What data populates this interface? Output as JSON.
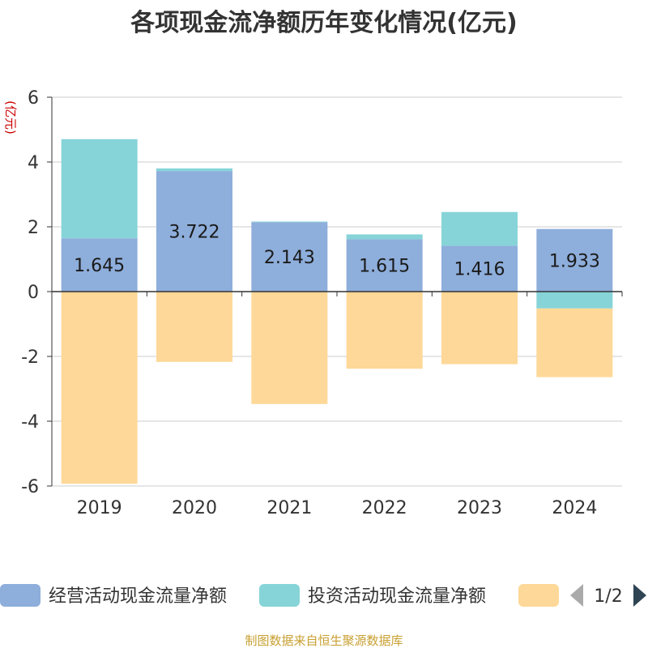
{
  "chart_data": {
    "type": "bar",
    "stacked": true,
    "title": "各项现金流净额历年变化情况(亿元)",
    "ylabel": "(亿元)",
    "xlabel": "",
    "categories": [
      "2019",
      "2020",
      "2021",
      "2022",
      "2023",
      "2024"
    ],
    "ylim": [
      -6,
      6
    ],
    "yticks": [
      6,
      4,
      2,
      0,
      -2,
      -4,
      -6
    ],
    "grid": true,
    "legend_position": "bottom",
    "series": [
      {
        "name": "经营活动现金流量净额",
        "color": "#8eaedb",
        "values": [
          1.645,
          3.722,
          2.143,
          1.615,
          1.416,
          1.933
        ],
        "labels": [
          "1.645",
          "3.722",
          "2.143",
          "1.615",
          "1.416",
          "1.933"
        ]
      },
      {
        "name": "投资活动现金流量净额",
        "color": "#86d4d8",
        "values": [
          3.06,
          0.08,
          0.02,
          0.15,
          1.04,
          -0.52
        ]
      },
      {
        "name": "",
        "color": "#fed898",
        "values": [
          -5.93,
          -2.17,
          -3.47,
          -2.38,
          -2.24,
          -2.12
        ]
      }
    ]
  },
  "legend": {
    "pager": "1/2"
  },
  "source": "制图数据来自恒生聚源数据库"
}
